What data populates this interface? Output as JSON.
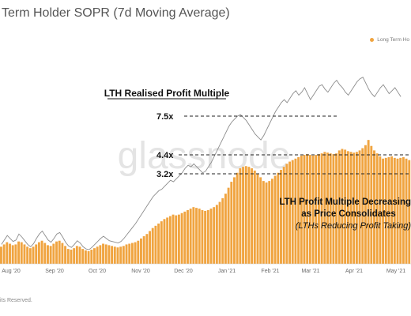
{
  "chart_data": {
    "type": "bar",
    "title": "Term Holder SOPR (7d Moving Average)",
    "legend": [
      {
        "label": "Long Term Ho",
        "color": "#f0a440"
      }
    ],
    "legend_position": "top-right",
    "watermark": "glassnode",
    "x_ticks": [
      "Aug '20",
      "Sep '20",
      "Oct '20",
      "Nov '20",
      "Dec '20",
      "Jan '21",
      "Feb '21",
      "Mar '21",
      "Apr '21",
      "May '21"
    ],
    "series": [
      {
        "color": "#f0a440",
        "type": "bar",
        "values": [
          1.15,
          1.3,
          1.45,
          1.35,
          1.25,
          1.3,
          1.5,
          1.45,
          1.3,
          1.15,
          1.05,
          1.15,
          1.3,
          1.45,
          1.55,
          1.4,
          1.25,
          1.2,
          1.35,
          1.5,
          1.55,
          1.4,
          1.2,
          1.0,
          0.95,
          1.05,
          1.2,
          1.15,
          1.0,
          0.9,
          0.85,
          0.95,
          1.05,
          1.15,
          1.25,
          1.35,
          1.3,
          1.25,
          1.2,
          1.15,
          1.1,
          1.15,
          1.2,
          1.3,
          1.35,
          1.4,
          1.45,
          1.55,
          1.7,
          1.85,
          2.0,
          2.2,
          2.4,
          2.55,
          2.7,
          2.85,
          3.0,
          3.1,
          3.2,
          3.3,
          3.25,
          3.3,
          3.4,
          3.5,
          3.6,
          3.7,
          3.8,
          3.75,
          3.7,
          3.6,
          3.55,
          3.6,
          3.7,
          3.8,
          3.95,
          4.15,
          4.4,
          4.7,
          5.1,
          5.5,
          5.8,
          6.1,
          6.4,
          6.5,
          6.55,
          6.5,
          6.4,
          6.25,
          6.0,
          5.8,
          5.55,
          5.45,
          5.55,
          5.7,
          5.9,
          6.1,
          6.3,
          6.5,
          6.7,
          6.85,
          6.95,
          7.05,
          7.15,
          7.25,
          7.3,
          7.35,
          7.3,
          7.25,
          7.3,
          7.35,
          7.4,
          7.5,
          7.45,
          7.4,
          7.35,
          7.4,
          7.6,
          7.7,
          7.65,
          7.55,
          7.5,
          7.45,
          7.5,
          7.6,
          7.75,
          7.95,
          8.3,
          7.9,
          7.6,
          7.4,
          7.2,
          7.05,
          7.1,
          7.15,
          7.2,
          7.1,
          7.05,
          7.1,
          7.15,
          7.05,
          6.95
        ]
      },
      {
        "color": "#8c8c8c",
        "type": "line",
        "values": [
          1.3,
          1.6,
          1.9,
          1.7,
          1.5,
          1.6,
          2.0,
          1.8,
          1.55,
          1.3,
          1.15,
          1.35,
          1.7,
          2.0,
          2.2,
          1.9,
          1.6,
          1.45,
          1.7,
          2.0,
          2.1,
          1.8,
          1.45,
          1.2,
          1.1,
          1.3,
          1.55,
          1.4,
          1.15,
          1.0,
          0.95,
          1.1,
          1.3,
          1.5,
          1.7,
          1.85,
          1.7,
          1.55,
          1.5,
          1.45,
          1.4,
          1.5,
          1.7,
          1.95,
          2.2,
          2.45,
          2.7,
          3.0,
          3.3,
          3.6,
          3.9,
          4.2,
          4.5,
          4.7,
          4.9,
          5.0,
          5.2,
          5.4,
          5.6,
          5.5,
          5.7,
          5.9,
          6.1,
          6.4,
          6.6,
          6.5,
          6.7,
          6.5,
          6.3,
          6.1,
          6.2,
          6.5,
          6.8,
          7.2,
          7.6,
          8.0,
          8.4,
          8.8,
          9.2,
          9.5,
          9.7,
          9.9,
          10.0,
          9.8,
          9.6,
          9.3,
          9.0,
          8.7,
          8.5,
          8.3,
          8.6,
          9.0,
          9.4,
          9.8,
          10.2,
          10.5,
          10.8,
          11.0,
          10.8,
          11.1,
          11.4,
          11.6,
          11.3,
          11.5,
          11.8,
          11.4,
          11.0,
          11.3,
          11.6,
          11.9,
          12.0,
          11.7,
          11.5,
          11.8,
          12.1,
          12.3,
          12.0,
          11.8,
          11.5,
          11.3,
          11.6,
          11.9,
          12.2,
          12.4,
          12.5,
          12.1,
          11.7,
          11.4,
          11.2,
          11.5,
          11.8,
          12.0,
          11.7,
          11.4,
          11.6,
          11.8,
          11.5,
          11.2
        ]
      }
    ]
  },
  "annotations": {
    "heading": "LTH Realised Profit Multiple",
    "level_labels": [
      "7.5x",
      "4.4x",
      "3.2x"
    ],
    "level_values": [
      7.5,
      4.4,
      3.2
    ],
    "callout_line1": "LTH Profit Multiple Decreasing",
    "callout_line2": "as Price Consolidates",
    "callout_line3": "(LTHs Reducing Profit Taking)"
  },
  "footer": "its Reserved."
}
